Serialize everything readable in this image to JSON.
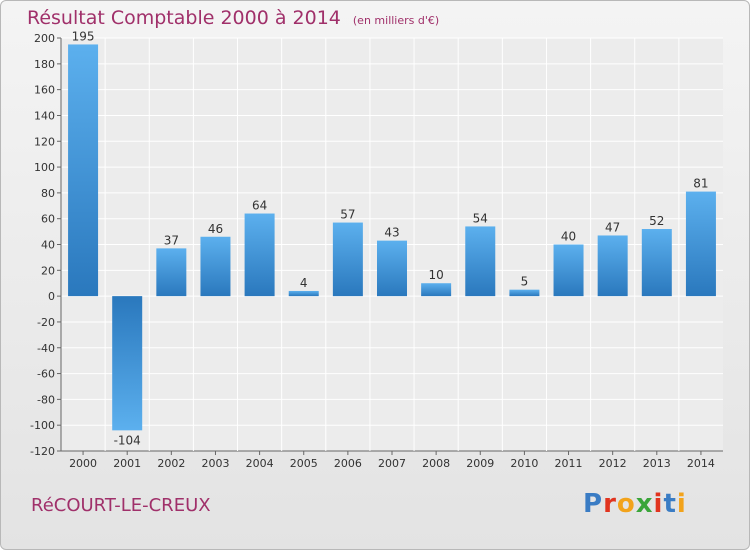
{
  "header": {
    "title": "Résultat Comptable 2000 à 2014",
    "subtitle": "(en milliers d'€)"
  },
  "footer": {
    "commune": "RéCOURT-LE-CREUX",
    "logo_text": "Proxiti",
    "logo_colors": [
      "#3a7cc4",
      "#e1341f",
      "#f2a31b",
      "#3aa53a",
      "#e1341f",
      "#3a7cc4",
      "#f2a31b"
    ]
  },
  "colors": {
    "bar_dark": "#2a78bd",
    "bar_light": "#5cb0ee",
    "grid": "#ffffff",
    "text": "#333333",
    "title": "#a0306a"
  },
  "chart_data": {
    "type": "bar",
    "categories": [
      "2000",
      "2001",
      "2002",
      "2003",
      "2004",
      "2005",
      "2006",
      "2007",
      "2008",
      "2009",
      "2010",
      "2011",
      "2012",
      "2013",
      "2014"
    ],
    "values": [
      195,
      -104,
      37,
      46,
      64,
      4,
      57,
      43,
      10,
      54,
      5,
      40,
      47,
      52,
      81
    ],
    "data_labels": [
      "195",
      "-104",
      "37",
      "46",
      "64",
      "4",
      "57",
      "43",
      "10",
      "54",
      "5",
      "40",
      "47",
      "52",
      "81"
    ],
    "yticks": [
      200,
      180,
      160,
      140,
      120,
      100,
      80,
      60,
      40,
      20,
      0,
      -20,
      -40,
      -60,
      -80,
      -100,
      -120
    ],
    "ylim": [
      -120,
      200
    ],
    "grid": true,
    "legend": "none",
    "title": "Résultat Comptable 2000 à 2014",
    "xlabel": "",
    "ylabel": ""
  }
}
